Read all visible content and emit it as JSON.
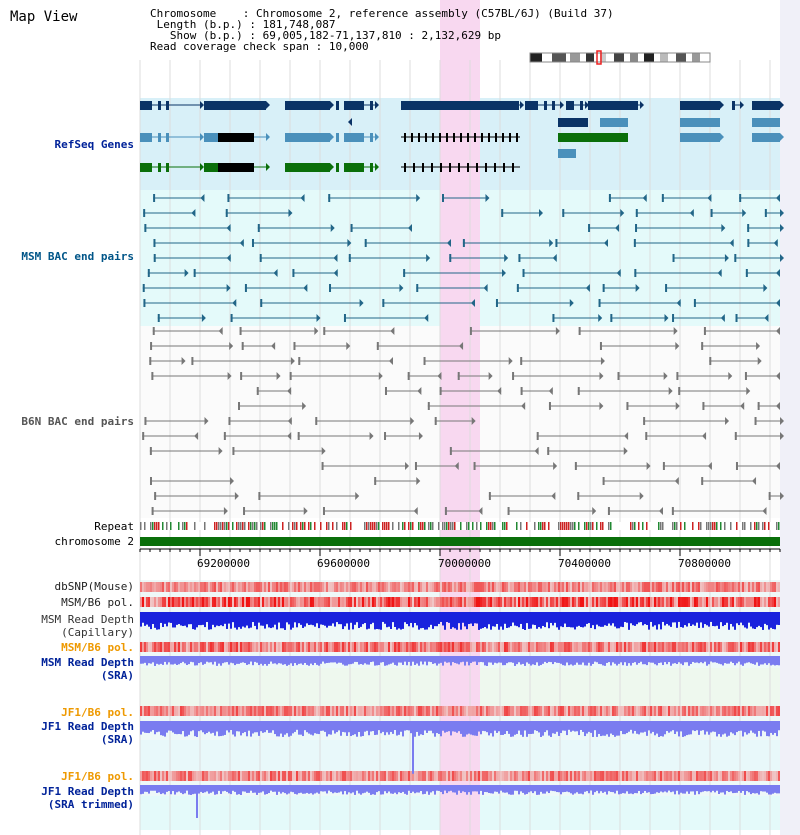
{
  "view": {
    "title": "Map View",
    "start_bp": 69005182,
    "end_bp": 71137810
  },
  "header": {
    "chromosome_label": "Chromosome",
    "chromosome_value": "Chromosome 2, reference assembly (C57BL/6J) (Build 37)",
    "length_label": "Length (b.p.)",
    "length_value": "181,748,087",
    "show_label": "Show (b.p.)",
    "show_value": "69,005,182-71,137,810 : 2,132,629 bp",
    "coverage_label": "Read coverage check span",
    "coverage_value": "10,000"
  },
  "tracks": {
    "refseq": "RefSeq Genes",
    "msm_bac": "MSM BAC end pairs",
    "b6n_bac": "B6N BAC end pairs",
    "repeat": "Repeat",
    "chromosome": "chromosome 2",
    "dbsnp": "dbSNP(Mouse)",
    "msm_b6_pol_1": "MSM/B6 pol.",
    "msm_depth_cap": "MSM Read Depth\n(Capillary)",
    "msm_b6_pol_2": "MSM/B6 pol.",
    "msm_depth_sra": "MSM Read Depth\n(SRA)",
    "jf1_b6_pol_1": "JF1/B6 pol.",
    "jf1_depth_sra": "JF1 Read Depth\n(SRA)",
    "jf1_b6_pol_2": "JF1/B6 pol.",
    "jf1_depth_trim": "JF1 Read Depth\n(SRA trimmed)"
  },
  "ruler": {
    "ticks": [
      "69200000",
      "69600000",
      "70000000",
      "70400000",
      "70800000"
    ]
  },
  "colors": {
    "highlight": "#f8d8f0",
    "refseq_bg": "#d8f0f8",
    "msm_bg": "#e4fafa",
    "gene_dark": "#0a3366",
    "gene_mid": "#4a90bb",
    "gene_green": "#0a6f0a",
    "msm_pair": "#226688",
    "b6n_pair": "#777777",
    "chromosome_bar": "#0a6f0a",
    "depth_blue": "#1a22dd",
    "depth_light": "#7a7cf0",
    "label_blue": "#002299",
    "label_teal": "#005588",
    "label_orange": "#ee9900",
    "label_grey": "#555555"
  }
}
